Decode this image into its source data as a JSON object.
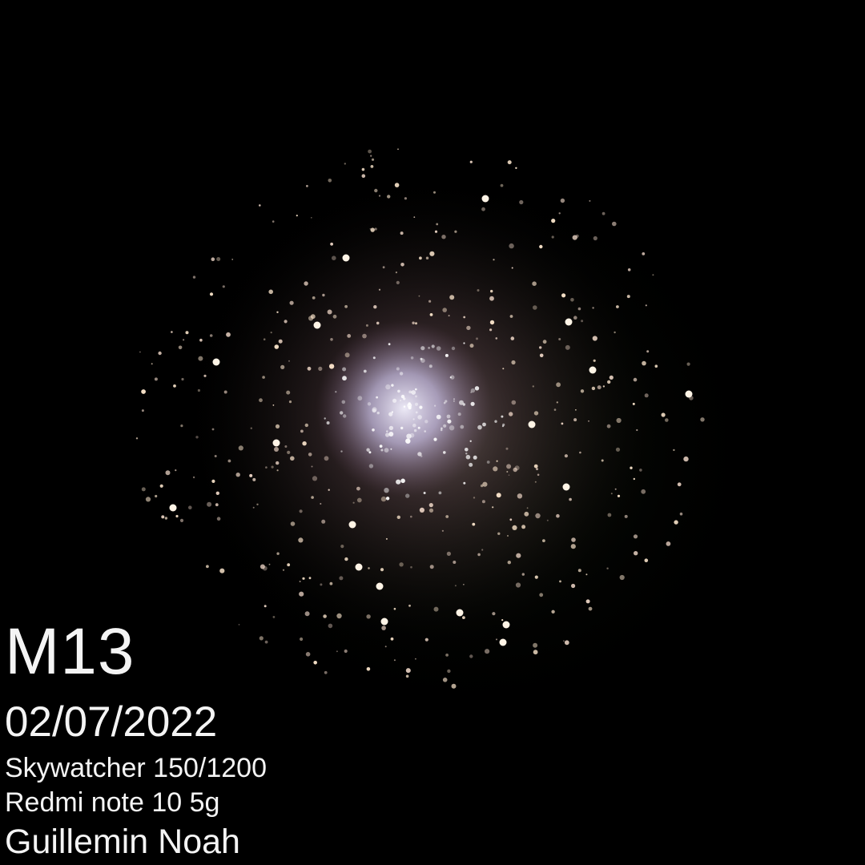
{
  "photo": {
    "subject": "M13",
    "date": "02/07/2022",
    "telescope": "Skywatcher 150/1200",
    "camera": "Redmi note 10 5g",
    "author": "Guillemin Noah"
  },
  "colors": {
    "background": "#000000",
    "caption_text": "#f4f4f4",
    "core_glow": "#d8d4f0",
    "halo_glow": "#8a6a78",
    "star_color": "#fff1dc"
  }
}
